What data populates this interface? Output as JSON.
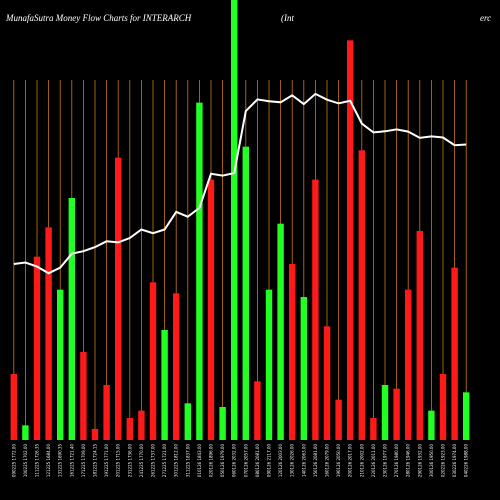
{
  "header": {
    "title": "MunafaSutra  Money Flow  Charts for INTERARCH",
    "subtitle": "(Int",
    "right_fragment": "erc"
  },
  "chart_data": {
    "type": "bar",
    "title": "MunafaSutra  Money Flow  Charts for INTERARCH",
    "xlabel": "",
    "ylabel": "",
    "colors": {
      "up": "#22ff22",
      "down": "#ff1a1a",
      "grid": "#c87814",
      "price_line": "#ffffff",
      "background": "#000000"
    },
    "categories": [
      "090225 1772.00 ",
      "100225 1702.00 ",
      "111225 1726.35 ",
      "121225 1684.00 ",
      "131225 1690.35 ",
      "161225 1721.40 ",
      "171225 1709.00 ",
      "181225 1724.15 ",
      "191225 1771.00 ",
      "201225 1715.00 ",
      "231225 1736.00 ",
      "241225 1770.00 ",
      "261225 1737.00 ",
      "271225 1721.00 ",
      "301225 1812.00 ",
      "311225 1837.00 ",
      "010126 1843.00 ",
      "020126 1896.00 ",
      "050126 1979.00 ",
      "060126 2032.00 ",
      "070126 2057.00 ",
      "080126 2081.00 ",
      "090126 2117.00 ",
      "120126 2003.00 ",
      "130126 2026.00 ",
      "140126 2063.00 ",
      "150126 2081.00 ",
      "160126 2079.00 ",
      "190126 2050.00 ",
      "200126 2017.00 ",
      "210126 2002.00 ",
      "220126 2011.00 ",
      "230126 1977.00 ",
      "270126 1980.00 ",
      "280126 1946.00 ",
      "290126 1932.00 ",
      "300126 1950.00 ",
      "020226 1923.00 ",
      "030226 1974.00 ",
      "040226 1988.00 "
    ],
    "volume_bars": [
      {
        "value": 18,
        "direction": "down"
      },
      {
        "value": 4,
        "direction": "up"
      },
      {
        "value": 50,
        "direction": "down"
      },
      {
        "value": 58,
        "direction": "down"
      },
      {
        "value": 41,
        "direction": "up"
      },
      {
        "value": 66,
        "direction": "up"
      },
      {
        "value": 24,
        "direction": "down"
      },
      {
        "value": 3,
        "direction": "down"
      },
      {
        "value": 15,
        "direction": "down"
      },
      {
        "value": 77,
        "direction": "down"
      },
      {
        "value": 6,
        "direction": "down"
      },
      {
        "value": 8,
        "direction": "down"
      },
      {
        "value": 43,
        "direction": "down"
      },
      {
        "value": 30,
        "direction": "up"
      },
      {
        "value": 40,
        "direction": "down"
      },
      {
        "value": 10,
        "direction": "up"
      },
      {
        "value": 92,
        "direction": "up"
      },
      {
        "value": 71,
        "direction": "down"
      },
      {
        "value": 9,
        "direction": "up"
      },
      {
        "value": 120,
        "direction": "up"
      },
      {
        "value": 80,
        "direction": "up"
      },
      {
        "value": 16,
        "direction": "down"
      },
      {
        "value": 41,
        "direction": "up"
      },
      {
        "value": 59,
        "direction": "up"
      },
      {
        "value": 48,
        "direction": "down"
      },
      {
        "value": 39,
        "direction": "up"
      },
      {
        "value": 71,
        "direction": "down"
      },
      {
        "value": 31,
        "direction": "down"
      },
      {
        "value": 11,
        "direction": "down"
      },
      {
        "value": 109,
        "direction": "down"
      },
      {
        "value": 79,
        "direction": "down"
      },
      {
        "value": 6,
        "direction": "down"
      },
      {
        "value": 15,
        "direction": "up"
      },
      {
        "value": 14,
        "direction": "down"
      },
      {
        "value": 41,
        "direction": "down"
      },
      {
        "value": 57,
        "direction": "down"
      },
      {
        "value": 8,
        "direction": "up"
      },
      {
        "value": 18,
        "direction": "down"
      },
      {
        "value": 47,
        "direction": "down"
      },
      {
        "value": 13,
        "direction": "up"
      }
    ],
    "price_line": [
      48.0,
      48.4,
      47.3,
      45.5,
      47.0,
      50.8,
      51.5,
      52.6,
      54.2,
      53.9,
      55.1,
      57.4,
      56.4,
      57.4,
      62.2,
      60.9,
      63.3,
      72.6,
      72.1,
      72.8,
      89.7,
      92.9,
      92.4,
      92.1,
      94.0,
      91.6,
      94.4,
      92.8,
      91.8,
      92.5,
      86.3,
      83.9,
      84.2,
      84.7,
      84.1,
      82.4,
      82.8,
      82.5,
      80.4,
      80.6
    ],
    "ylim_volume": [
      0,
      120
    ],
    "ylim_line": [
      0,
      120
    ],
    "grid": true
  }
}
